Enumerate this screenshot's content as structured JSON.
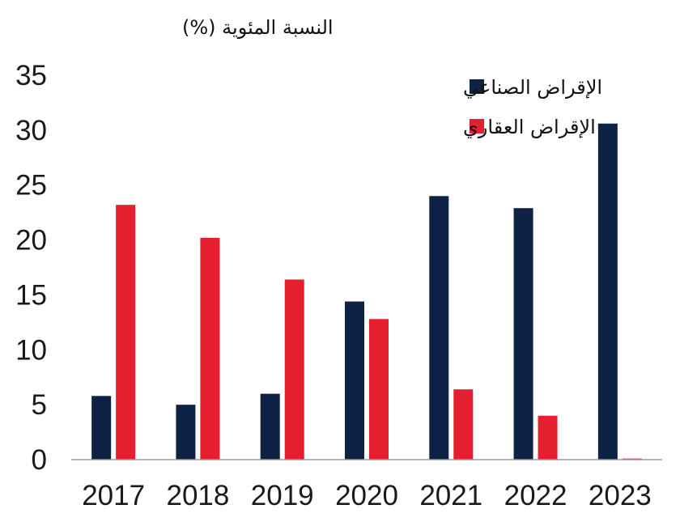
{
  "chart_data": {
    "type": "bar",
    "title": "",
    "xlabel": "",
    "ylabel": "النسبة المئوية (%)",
    "categories": [
      "2017",
      "2018",
      "2019",
      "2020",
      "2021",
      "2022",
      "2023"
    ],
    "series": [
      {
        "name": "الإقراض الصناعي",
        "color": "#0d2244",
        "values": [
          5.8,
          5.0,
          6.0,
          14.4,
          24.0,
          22.9,
          30.6
        ]
      },
      {
        "name": "الإقراض العقاري",
        "color": "#e51f30",
        "values": [
          23.2,
          20.2,
          16.4,
          12.8,
          6.4,
          4.0,
          0.1
        ]
      }
    ],
    "ylim": [
      0,
      35
    ],
    "yticks": [
      "0",
      "5",
      "10",
      "15",
      "20",
      "25",
      "30",
      "35"
    ],
    "grid": false,
    "legend_position": "top-right"
  }
}
